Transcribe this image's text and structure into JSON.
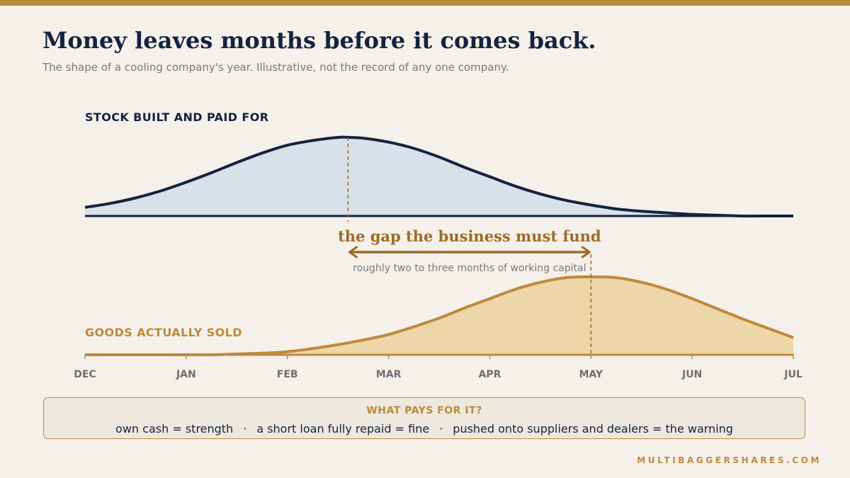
{
  "header": {
    "title": "Money leaves months before it comes back.",
    "subtitle": "The shape of a cooling company's year. Illustrative, not the record of any one company."
  },
  "colors": {
    "accent": "#bd8a3b",
    "navy": "#13233f",
    "stock_fill": "#d8e0ea",
    "sold_fill": "#edd6a8",
    "gap": "#9c6b28",
    "background": "#f5f0ea"
  },
  "chart_data": {
    "type": "area",
    "x_axis": {
      "ticks": [
        "DEC",
        "JAN",
        "FEB",
        "MAR",
        "APR",
        "MAY",
        "JUN",
        "JUL"
      ],
      "range": [
        0,
        7
      ]
    },
    "y_range": [
      0,
      1
    ],
    "series": [
      {
        "name": "STOCK BUILT AND PAID FOR",
        "color": "#13233f",
        "fill": "#d8e0ea",
        "x": [
          0,
          0.25,
          0.5,
          0.75,
          1,
          1.25,
          1.5,
          1.75,
          2,
          2.25,
          2.5,
          2.6,
          2.75,
          3,
          3.25,
          3.5,
          3.75,
          4,
          4.25,
          4.5,
          4.75,
          5,
          5.25,
          5.5,
          5.75,
          6,
          6.25,
          6.5,
          6.75,
          7
        ],
        "y": [
          0.11,
          0.16,
          0.23,
          0.32,
          0.43,
          0.55,
          0.68,
          0.8,
          0.9,
          0.96,
          1.0,
          1.0,
          0.99,
          0.94,
          0.86,
          0.75,
          0.62,
          0.5,
          0.38,
          0.28,
          0.2,
          0.14,
          0.09,
          0.06,
          0.04,
          0.02,
          0.01,
          0.0,
          0.0,
          0.0
        ]
      },
      {
        "name": "GOODS ACTUALLY SOLD",
        "color": "#bd8a3b",
        "fill": "#edd6a8",
        "x": [
          0,
          0.25,
          0.5,
          0.75,
          1,
          1.25,
          1.5,
          1.75,
          2,
          2.25,
          2.5,
          2.75,
          3,
          3.25,
          3.5,
          3.75,
          4,
          4.25,
          4.5,
          4.75,
          5,
          5.25,
          5.5,
          5.75,
          6,
          6.25,
          6.5,
          6.75,
          7
        ],
        "y": [
          0.0,
          0.0,
          0.0,
          0.0,
          0.0,
          0.0,
          0.01,
          0.02,
          0.04,
          0.08,
          0.13,
          0.19,
          0.26,
          0.36,
          0.47,
          0.6,
          0.72,
          0.84,
          0.93,
          0.99,
          1.0,
          0.99,
          0.93,
          0.84,
          0.72,
          0.59,
          0.46,
          0.34,
          0.22
        ]
      }
    ],
    "annotation": {
      "text": "the gap the business must fund",
      "subtext": "roughly two to three months of working capital",
      "from_x": 2.6,
      "to_x": 5.0
    }
  },
  "callout": {
    "heading": "WHAT PAYS FOR IT?",
    "items": [
      {
        "term": "own cash",
        "verdict": "strength"
      },
      {
        "term": "a short loan fully repaid",
        "verdict": "fine"
      },
      {
        "term": "pushed onto suppliers and dealers",
        "verdict": "the warning"
      }
    ],
    "equals": "=",
    "separator": "·"
  },
  "brand": "MULTIBAGGERSHARES.COM"
}
